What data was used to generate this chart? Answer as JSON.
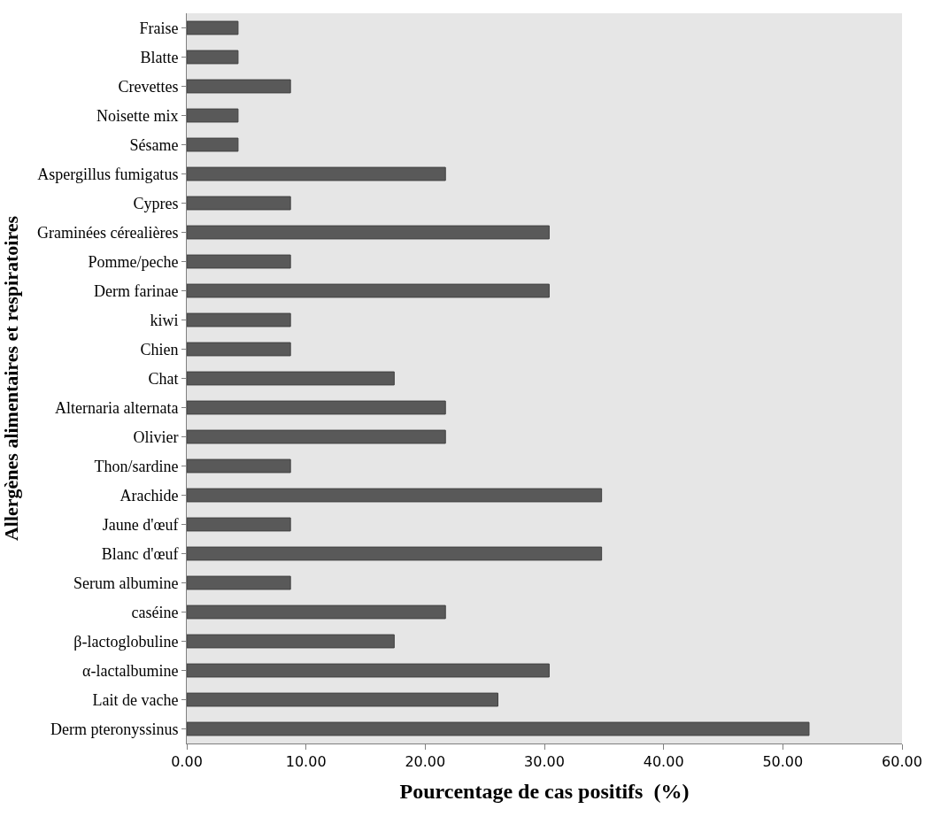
{
  "chart_data": {
    "type": "bar",
    "orientation": "horizontal",
    "xlabel": "Pourcentage de cas positifs  (%)",
    "ylabel": "Allergènes alimentaires et respiratoires",
    "categories": [
      "Fraise",
      "Blatte",
      "Crevettes",
      "Noisette mix",
      "Sésame",
      "Aspergillus fumigatus",
      "Cypres",
      "Graminées cérealières",
      "Pomme/peche",
      "Derm farinae",
      "kiwi",
      "Chien",
      "Chat",
      "Alternaria alternata",
      "Olivier",
      "Thon/sardine",
      "Arachide",
      "Jaune d'œuf",
      "Blanc d'œuf",
      "Serum albumine",
      "caséine",
      "β-lactoglobuline",
      "α-lactalbumine",
      "Lait de vache",
      "Derm pteronyssinus"
    ],
    "values": [
      4.3,
      4.3,
      8.7,
      4.3,
      4.3,
      21.7,
      8.7,
      30.4,
      8.7,
      30.4,
      8.7,
      8.7,
      17.4,
      21.7,
      21.7,
      8.7,
      34.8,
      8.7,
      34.8,
      8.7,
      21.7,
      17.4,
      30.4,
      26.1,
      52.2
    ],
    "color": "#595959",
    "xlim": [
      0,
      60
    ],
    "xticks": [
      {
        "value": 0,
        "label": "0.00"
      },
      {
        "value": 10,
        "label": "10.00"
      },
      {
        "value": 20,
        "label": "20.00"
      },
      {
        "value": 30,
        "label": "30.00"
      },
      {
        "value": 40,
        "label": "40.00"
      },
      {
        "value": 50,
        "label": "50.00"
      },
      {
        "value": 60,
        "label": "60.00"
      }
    ],
    "grid": false,
    "legend": false
  }
}
